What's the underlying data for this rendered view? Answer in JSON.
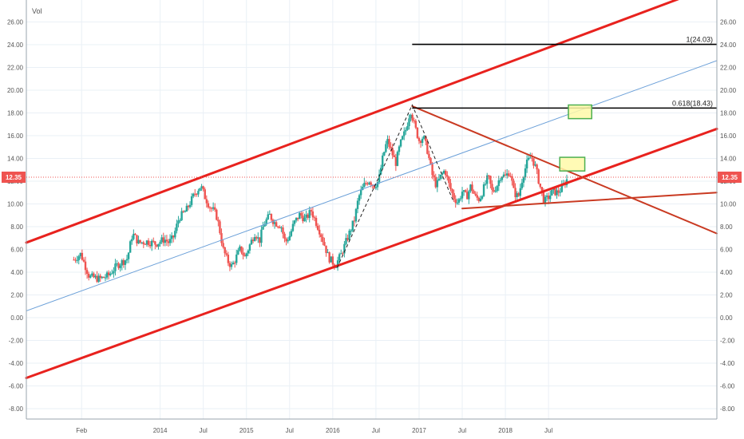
{
  "chart_data": {
    "type": "candlestick",
    "indicator_label": "Vol",
    "y_ticks": [
      "26.00",
      "24.00",
      "22.00",
      "20.00",
      "18.00",
      "16.00",
      "14.00",
      "12.00",
      "10.00",
      "8.00",
      "6.00",
      "4.00",
      "2.00",
      "0.00",
      "-2.00",
      "-4.00",
      "-6.00",
      "-8.00"
    ],
    "x_ticks": [
      {
        "label": "Feb",
        "t": 2013.09
      },
      {
        "label": "2014",
        "t": 2014.0
      },
      {
        "label": "Jul",
        "t": 2014.5
      },
      {
        "label": "2015",
        "t": 2015.0
      },
      {
        "label": "Jul",
        "t": 2015.5
      },
      {
        "label": "2016",
        "t": 2016.0
      },
      {
        "label": "Jul",
        "t": 2016.5
      },
      {
        "label": "2017",
        "t": 2017.0
      },
      {
        "label": "Jul",
        "t": 2017.5
      },
      {
        "label": "2018",
        "t": 2018.0
      },
      {
        "label": "Jul",
        "t": 2018.5
      }
    ],
    "ylim": [
      -9.5,
      27.5
    ],
    "xlim": [
      2012.45,
      2020.45
    ],
    "last_price": 12.35,
    "last_price_label": "12.35",
    "price_path": [
      [
        2013.0,
        5.1
      ],
      [
        2013.08,
        5.6
      ],
      [
        2013.13,
        4.6
      ],
      [
        2013.18,
        3.6
      ],
      [
        2013.3,
        3.4
      ],
      [
        2013.4,
        3.7
      ],
      [
        2013.5,
        4.6
      ],
      [
        2013.62,
        5.2
      ],
      [
        2013.68,
        7.4
      ],
      [
        2013.75,
        6.6
      ],
      [
        2013.85,
        6.7
      ],
      [
        2013.95,
        6.5
      ],
      [
        2014.05,
        6.9
      ],
      [
        2014.1,
        6.6
      ],
      [
        2014.15,
        7.0
      ],
      [
        2014.22,
        8.8
      ],
      [
        2014.3,
        9.4
      ],
      [
        2014.4,
        10.9
      ],
      [
        2014.47,
        11.6
      ],
      [
        2014.52,
        10.6
      ],
      [
        2014.58,
        9.7
      ],
      [
        2014.62,
        9.4
      ],
      [
        2014.66,
        8.8
      ],
      [
        2014.7,
        7.3
      ],
      [
        2014.73,
        6.0
      ],
      [
        2014.78,
        5.0
      ],
      [
        2014.83,
        4.5
      ],
      [
        2014.88,
        5.3
      ],
      [
        2014.93,
        6.1
      ],
      [
        2014.98,
        5.3
      ],
      [
        2015.05,
        6.6
      ],
      [
        2015.1,
        7.5
      ],
      [
        2015.15,
        6.7
      ],
      [
        2015.2,
        8.2
      ],
      [
        2015.27,
        9.0
      ],
      [
        2015.32,
        8.4
      ],
      [
        2015.4,
        8.1
      ],
      [
        2015.45,
        6.6
      ],
      [
        2015.5,
        7.2
      ],
      [
        2015.55,
        8.3
      ],
      [
        2015.62,
        9.1
      ],
      [
        2015.68,
        8.6
      ],
      [
        2015.75,
        9.4
      ],
      [
        2015.8,
        8.5
      ],
      [
        2015.85,
        7.6
      ],
      [
        2015.9,
        6.5
      ],
      [
        2015.95,
        5.3
      ],
      [
        2016.03,
        4.6
      ],
      [
        2016.1,
        5.6
      ],
      [
        2016.15,
        6.6
      ],
      [
        2016.2,
        7.6
      ],
      [
        2016.25,
        8.6
      ],
      [
        2016.3,
        10.6
      ],
      [
        2016.36,
        11.6
      ],
      [
        2016.42,
        12.1
      ],
      [
        2016.48,
        11.6
      ],
      [
        2016.53,
        12.0
      ],
      [
        2016.58,
        14.1
      ],
      [
        2016.63,
        15.6
      ],
      [
        2016.68,
        14.6
      ],
      [
        2016.73,
        13.6
      ],
      [
        2016.78,
        15.2
      ],
      [
        2016.85,
        16.6
      ],
      [
        2016.9,
        18.3
      ],
      [
        2016.95,
        16.8
      ],
      [
        2017.0,
        15.6
      ],
      [
        2017.05,
        15.9
      ],
      [
        2017.1,
        14.6
      ],
      [
        2017.15,
        12.6
      ],
      [
        2017.2,
        11.6
      ],
      [
        2017.25,
        12.4
      ],
      [
        2017.3,
        13.0
      ],
      [
        2017.35,
        11.6
      ],
      [
        2017.4,
        10.6
      ],
      [
        2017.45,
        10.1
      ],
      [
        2017.5,
        11.1
      ],
      [
        2017.55,
        10.6
      ],
      [
        2017.6,
        11.6
      ],
      [
        2017.65,
        10.6
      ],
      [
        2017.7,
        10.4
      ],
      [
        2017.75,
        11.4
      ],
      [
        2017.8,
        12.4
      ],
      [
        2017.85,
        11.0
      ],
      [
        2017.9,
        11.6
      ],
      [
        2017.95,
        12.6
      ],
      [
        2018.0,
        12.4
      ],
      [
        2018.05,
        12.9
      ],
      [
        2018.1,
        11.0
      ],
      [
        2018.15,
        10.6
      ],
      [
        2018.2,
        12.4
      ],
      [
        2018.25,
        13.6
      ],
      [
        2018.3,
        14.2
      ],
      [
        2018.35,
        13.2
      ],
      [
        2018.4,
        11.6
      ],
      [
        2018.45,
        10.2
      ],
      [
        2018.5,
        10.6
      ],
      [
        2018.55,
        11.1
      ],
      [
        2018.6,
        11.0
      ],
      [
        2018.65,
        11.3
      ],
      [
        2018.7,
        12.0
      ],
      [
        2018.73,
        12.35
      ]
    ],
    "trendlines": [
      {
        "name": "channel-upper",
        "from": [
          2012.45,
          6.6
        ],
        "to": [
          2020.0,
          28.0
        ],
        "color": "#e8221e",
        "width": 3
      },
      {
        "name": "channel-lower",
        "from": [
          2012.45,
          -5.3
        ],
        "to": [
          2020.45,
          16.6
        ],
        "color": "#e8221e",
        "width": 3
      },
      {
        "name": "midline",
        "from": [
          2012.45,
          0.6
        ],
        "to": [
          2020.45,
          22.6
        ],
        "color": "#6a9fd8",
        "width": 1
      },
      {
        "name": "downtrend",
        "from": [
          2016.92,
          18.6
        ],
        "to": [
          2020.45,
          7.4
        ],
        "color": "#c93a22",
        "width": 2
      },
      {
        "name": "support",
        "from": [
          2017.5,
          9.6
        ],
        "to": [
          2020.45,
          11.0
        ],
        "color": "#c93a22",
        "width": 2
      }
    ],
    "dashed_path": [
      [
        2016.05,
        4.4
      ],
      [
        2016.92,
        18.7
      ],
      [
        2017.4,
        10.2
      ]
    ],
    "fib_levels": [
      {
        "label": "1(24.03)",
        "value": 24.03,
        "from": 2016.92
      },
      {
        "label": "0.618(18.43)",
        "value": 18.43,
        "from": 2016.92
      }
    ],
    "highlight_boxes": [
      {
        "t0": 2018.73,
        "t1": 2019.0,
        "v0": 17.5,
        "v1": 18.7
      },
      {
        "t0": 2018.63,
        "t1": 2018.92,
        "v0": 12.9,
        "v1": 14.1
      }
    ],
    "colors": {
      "up": "#26a69a",
      "down": "#ef5350",
      "channel": "#e8221e",
      "midline": "#6a9fd8",
      "downtrend": "#c93a22",
      "fib": "#000000",
      "price_line": "#ef5350",
      "box_fill": "#fff9a8",
      "box_stroke": "#4caf50",
      "grid": "#eaf0f6"
    }
  }
}
